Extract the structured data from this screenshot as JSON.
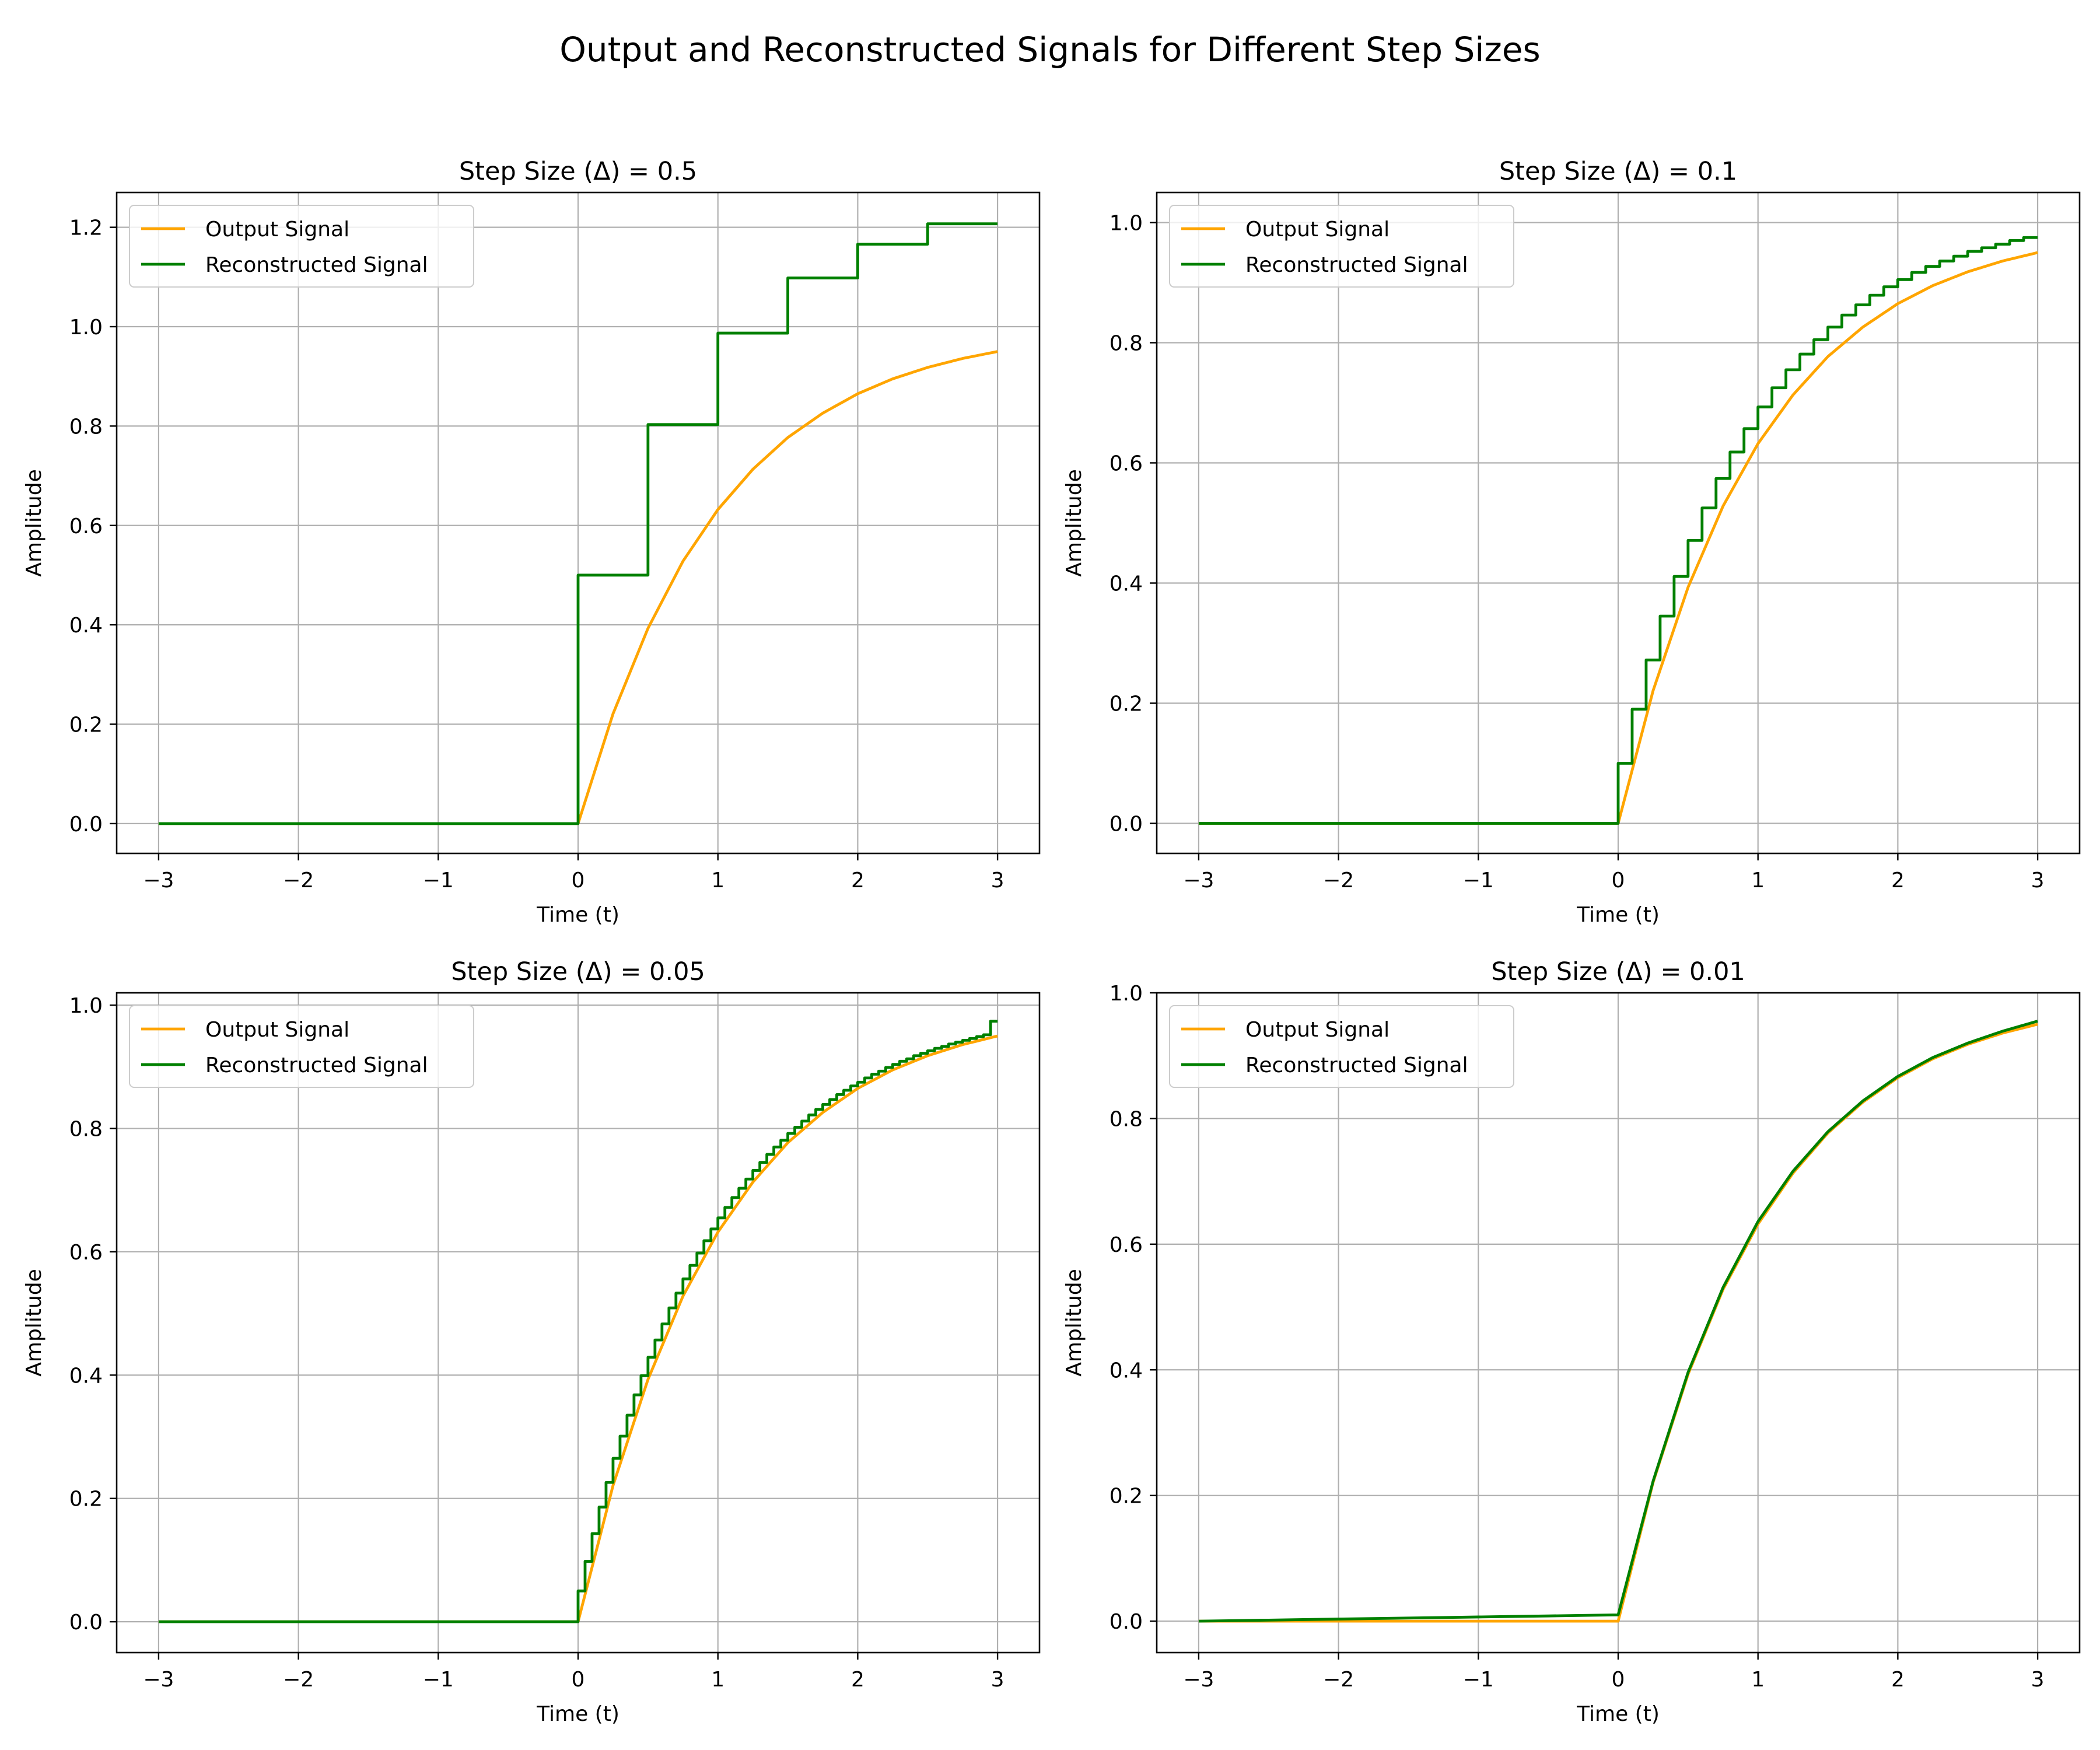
{
  "figure": {
    "suptitle": "Output and Reconstructed Signals for Different Step Sizes"
  },
  "colors": {
    "output": "#ffa500",
    "reconstructed": "#008000",
    "grid": "#b0b0b0",
    "axes": "#000000"
  },
  "legend": {
    "output_label": "Output Signal",
    "reconstructed_label": "Reconstructed Signal",
    "placement": "upper-left"
  },
  "chart_data": [
    {
      "type": "line",
      "title": "Step Size (Δ) = 0.5",
      "xlabel": "Time (t)",
      "ylabel": "Amplitude",
      "xlim": [
        -3.3,
        3.3
      ],
      "ylim": [
        -0.06,
        1.27
      ],
      "xticks": [
        -3,
        -2,
        -1,
        0,
        1,
        2,
        3
      ],
      "xtick_labels": [
        "−3",
        "−2",
        "−1",
        "0",
        "1",
        "2",
        "3"
      ],
      "yticks": [
        0.0,
        0.2,
        0.4,
        0.6,
        0.8,
        1.0,
        1.2
      ],
      "ytick_labels": [
        "0.0",
        "0.2",
        "0.4",
        "0.6",
        "0.8",
        "1.0",
        "1.2"
      ],
      "grid": true,
      "legend": "upper-left",
      "series": [
        {
          "name": "Output Signal",
          "kind": "curve",
          "x": [
            -3,
            0,
            0.25,
            0.5,
            0.75,
            1.0,
            1.25,
            1.5,
            1.75,
            2.0,
            2.25,
            2.5,
            2.75,
            3.0
          ],
          "y": [
            0,
            0,
            0.221,
            0.393,
            0.528,
            0.632,
            0.713,
            0.777,
            0.826,
            0.865,
            0.895,
            0.918,
            0.936,
            0.95
          ]
        },
        {
          "name": "Reconstructed Signal",
          "kind": "step",
          "x": [
            -3,
            0,
            0.5,
            1.0,
            1.5,
            2.0,
            2.5,
            3.0
          ],
          "y": [
            0,
            0.5,
            0.803,
            0.987,
            1.098,
            1.166,
            1.207,
            1.207
          ]
        }
      ]
    },
    {
      "type": "line",
      "title": "Step Size (Δ) = 0.1",
      "xlabel": "Time (t)",
      "ylabel": "Amplitude",
      "xlim": [
        -3.3,
        3.3
      ],
      "ylim": [
        -0.05,
        1.05
      ],
      "xticks": [
        -3,
        -2,
        -1,
        0,
        1,
        2,
        3
      ],
      "xtick_labels": [
        "−3",
        "−2",
        "−1",
        "0",
        "1",
        "2",
        "3"
      ],
      "yticks": [
        0.0,
        0.2,
        0.4,
        0.6,
        0.8,
        1.0
      ],
      "ytick_labels": [
        "0.0",
        "0.2",
        "0.4",
        "0.6",
        "0.8",
        "1.0"
      ],
      "grid": true,
      "legend": "upper-left",
      "series": [
        {
          "name": "Output Signal",
          "kind": "curve",
          "x": [
            -3,
            0,
            0.25,
            0.5,
            0.75,
            1.0,
            1.25,
            1.5,
            1.75,
            2.0,
            2.25,
            2.5,
            2.75,
            3.0
          ],
          "y": [
            0,
            0,
            0.221,
            0.393,
            0.528,
            0.632,
            0.713,
            0.777,
            0.826,
            0.865,
            0.895,
            0.918,
            0.936,
            0.95
          ]
        },
        {
          "name": "Reconstructed Signal",
          "kind": "step",
          "x": [
            -3,
            0,
            0.1,
            0.2,
            0.3,
            0.4,
            0.5,
            0.6,
            0.7,
            0.8,
            0.9,
            1.0,
            1.1,
            1.2,
            1.3,
            1.4,
            1.5,
            1.6,
            1.7,
            1.8,
            1.9,
            2.0,
            2.1,
            2.2,
            2.3,
            2.4,
            2.5,
            2.6,
            2.7,
            2.8,
            2.9,
            3.0
          ],
          "y": [
            0,
            0.1,
            0.19,
            0.272,
            0.345,
            0.411,
            0.471,
            0.525,
            0.574,
            0.618,
            0.657,
            0.693,
            0.725,
            0.755,
            0.781,
            0.805,
            0.826,
            0.846,
            0.863,
            0.879,
            0.893,
            0.905,
            0.917,
            0.927,
            0.936,
            0.944,
            0.952,
            0.958,
            0.964,
            0.97,
            0.975,
            0.975
          ]
        }
      ]
    },
    {
      "type": "line",
      "title": "Step Size (Δ) = 0.05",
      "xlabel": "Time (t)",
      "ylabel": "Amplitude",
      "xlim": [
        -3.3,
        3.3
      ],
      "ylim": [
        -0.05,
        1.02
      ],
      "xticks": [
        -3,
        -2,
        -1,
        0,
        1,
        2,
        3
      ],
      "xtick_labels": [
        "−3",
        "−2",
        "−1",
        "0",
        "1",
        "2",
        "3"
      ],
      "yticks": [
        0.0,
        0.2,
        0.4,
        0.6,
        0.8,
        1.0
      ],
      "ytick_labels": [
        "0.0",
        "0.2",
        "0.4",
        "0.6",
        "0.8",
        "1.0"
      ],
      "grid": true,
      "legend": "upper-left",
      "series": [
        {
          "name": "Output Signal",
          "kind": "curve",
          "x": [
            -3,
            0,
            0.25,
            0.5,
            0.75,
            1.0,
            1.25,
            1.5,
            1.75,
            2.0,
            2.25,
            2.5,
            2.75,
            3.0
          ],
          "y": [
            0,
            0,
            0.221,
            0.393,
            0.528,
            0.632,
            0.713,
            0.777,
            0.826,
            0.865,
            0.895,
            0.918,
            0.936,
            0.95
          ]
        },
        {
          "name": "Reconstructed Signal",
          "kind": "step",
          "x": [
            -3,
            0,
            0.05,
            0.1,
            0.15,
            0.2,
            0.25,
            0.3,
            0.35,
            0.4,
            0.45,
            0.5,
            0.55,
            0.6,
            0.65,
            0.7,
            0.75,
            0.8,
            0.85,
            0.9,
            0.95,
            1.0,
            1.05,
            1.1,
            1.15,
            1.2,
            1.25,
            1.3,
            1.35,
            1.4,
            1.45,
            1.5,
            1.55,
            1.6,
            1.65,
            1.7,
            1.75,
            1.8,
            1.85,
            1.9,
            1.95,
            2.0,
            2.05,
            2.1,
            2.15,
            2.2,
            2.25,
            2.3,
            2.35,
            2.4,
            2.45,
            2.5,
            2.55,
            2.6,
            2.65,
            2.7,
            2.75,
            2.8,
            2.85,
            2.9,
            2.95,
            3.0
          ],
          "y": [
            0,
            0.05,
            0.098,
            0.143,
            0.186,
            0.226,
            0.265,
            0.301,
            0.335,
            0.368,
            0.399,
            0.429,
            0.457,
            0.483,
            0.509,
            0.533,
            0.556,
            0.578,
            0.598,
            0.618,
            0.637,
            0.655,
            0.672,
            0.688,
            0.703,
            0.718,
            0.732,
            0.745,
            0.758,
            0.77,
            0.781,
            0.792,
            0.802,
            0.812,
            0.822,
            0.831,
            0.839,
            0.847,
            0.855,
            0.862,
            0.869,
            0.875,
            0.882,
            0.888,
            0.893,
            0.899,
            0.904,
            0.909,
            0.913,
            0.918,
            0.922,
            0.926,
            0.93,
            0.933,
            0.937,
            0.94,
            0.943,
            0.946,
            0.949,
            0.952,
            0.974,
            0.974
          ]
        }
      ]
    },
    {
      "type": "line",
      "title": "Step Size (Δ) = 0.01",
      "xlabel": "Time (t)",
      "ylabel": "Amplitude",
      "xlim": [
        -3.3,
        3.3
      ],
      "ylim": [
        -0.05,
        1.0
      ],
      "xticks": [
        -3,
        -2,
        -1,
        0,
        1,
        2,
        3
      ],
      "xtick_labels": [
        "−3",
        "−2",
        "−1",
        "0",
        "1",
        "2",
        "3"
      ],
      "yticks": [
        0.0,
        0.2,
        0.4,
        0.6,
        0.8,
        1.0
      ],
      "ytick_labels": [
        "0.0",
        "0.2",
        "0.4",
        "0.6",
        "0.8",
        "1.0"
      ],
      "grid": true,
      "legend": "upper-left",
      "series": [
        {
          "name": "Output Signal",
          "kind": "curve",
          "x": [
            -3,
            0,
            0.25,
            0.5,
            0.75,
            1.0,
            1.25,
            1.5,
            1.75,
            2.0,
            2.25,
            2.5,
            2.75,
            3.0
          ],
          "y": [
            0,
            0,
            0.221,
            0.393,
            0.528,
            0.632,
            0.713,
            0.777,
            0.826,
            0.865,
            0.895,
            0.918,
            0.936,
            0.95
          ]
        },
        {
          "name": "Reconstructed Signal",
          "kind": "curve",
          "x": [
            -3,
            0,
            0.25,
            0.5,
            0.75,
            1.0,
            1.25,
            1.5,
            1.75,
            2.0,
            2.25,
            2.5,
            2.75,
            3.0
          ],
          "y": [
            0,
            0.01,
            0.223,
            0.396,
            0.531,
            0.636,
            0.716,
            0.779,
            0.828,
            0.867,
            0.897,
            0.92,
            0.939,
            0.955
          ]
        }
      ]
    }
  ]
}
